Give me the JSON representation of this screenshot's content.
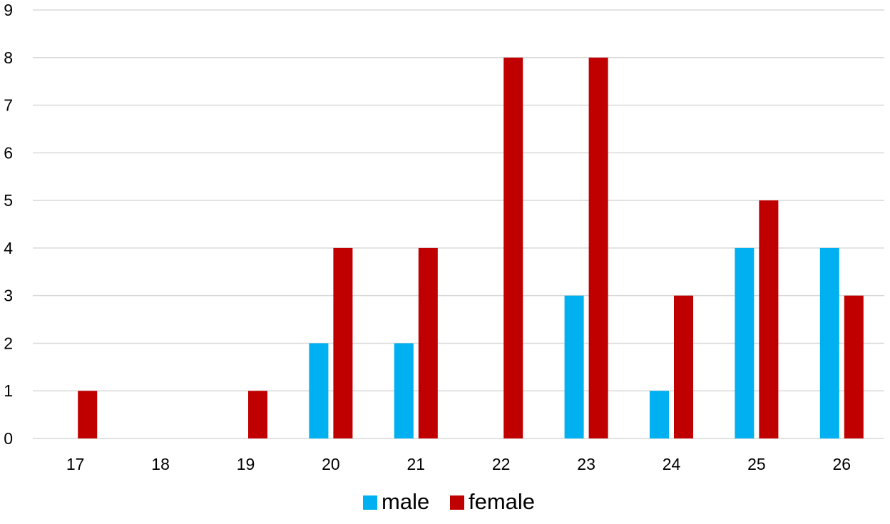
{
  "chart_data": {
    "type": "bar",
    "title": "",
    "xlabel": "",
    "ylabel": "",
    "categories": [
      "17",
      "18",
      "19",
      "20",
      "21",
      "22",
      "23",
      "24",
      "25",
      "26"
    ],
    "ylim": [
      0,
      9
    ],
    "yticks": [
      0,
      1,
      2,
      3,
      4,
      5,
      6,
      7,
      8,
      9
    ],
    "grid": true,
    "legend_position": "bottom",
    "series": [
      {
        "name": "male",
        "color": "#00b0f0",
        "values": [
          0,
          0,
          0,
          2,
          2,
          0,
          3,
          1,
          4,
          4
        ]
      },
      {
        "name": "female",
        "color": "#c00000",
        "values": [
          1,
          0,
          1,
          4,
          4,
          8,
          8,
          3,
          5,
          3
        ]
      }
    ]
  }
}
